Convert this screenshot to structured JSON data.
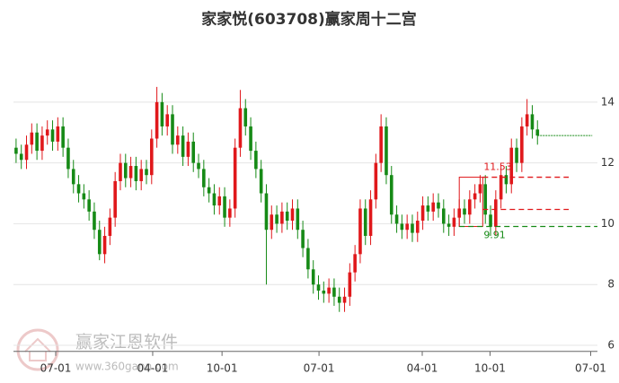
{
  "chart_data": {
    "type": "candlestick",
    "title": "家家悦(603708)赢家周十二宫",
    "open": [
      12.5,
      12.3,
      12.1,
      12.6,
      13.0,
      12.4,
      12.9,
      13.1,
      12.7,
      13.2,
      12.5,
      11.8,
      11.3,
      11.0,
      10.8,
      10.4,
      9.8,
      9.0,
      9.6,
      10.2,
      11.4,
      12.0,
      11.5,
      11.9,
      11.4,
      11.8,
      11.6,
      12.8,
      14.0,
      13.2,
      13.6,
      12.6,
      12.9,
      12.2,
      12.7,
      12.0,
      11.8,
      11.2,
      11.0,
      10.6,
      10.9,
      10.2,
      10.5,
      12.5,
      13.8,
      13.2,
      12.4,
      11.8,
      11.0,
      9.8,
      10.3,
      10.0,
      10.4,
      10.1,
      10.5,
      9.8,
      9.2,
      8.5,
      8.0,
      7.8,
      7.7,
      7.9,
      7.6,
      7.4,
      7.6,
      8.4,
      9.0,
      10.5,
      9.6,
      10.8,
      12.0,
      13.2,
      11.6,
      10.3,
      10.0,
      9.8,
      10.0,
      9.7,
      10.1,
      10.6,
      10.4,
      10.7,
      10.5,
      10.0,
      9.9,
      10.2,
      10.5,
      10.3,
      10.8,
      11.0,
      11.3,
      10.3,
      9.9,
      10.8,
      11.6,
      11.3,
      12.5,
      12.0,
      13.2,
      13.6,
      13.1
    ],
    "high": [
      12.8,
      12.6,
      12.9,
      13.3,
      13.3,
      13.2,
      13.4,
      13.4,
      13.5,
      13.5,
      12.8,
      12.1,
      11.6,
      11.3,
      11.1,
      10.7,
      10.1,
      9.9,
      10.5,
      11.7,
      12.3,
      12.3,
      12.2,
      12.2,
      12.1,
      12.1,
      13.1,
      14.5,
      14.3,
      13.9,
      13.9,
      13.2,
      13.2,
      13.0,
      13.0,
      12.3,
      12.1,
      11.5,
      11.3,
      11.2,
      11.2,
      10.8,
      12.8,
      14.4,
      14.1,
      13.5,
      12.7,
      12.1,
      11.3,
      10.6,
      10.6,
      10.7,
      10.7,
      10.8,
      10.8,
      10.1,
      9.5,
      8.8,
      8.3,
      8.1,
      8.2,
      8.2,
      7.9,
      7.9,
      8.7,
      9.3,
      10.8,
      10.8,
      11.1,
      12.3,
      13.6,
      13.5,
      11.9,
      10.6,
      10.3,
      10.3,
      10.3,
      10.4,
      10.9,
      10.9,
      11.0,
      11.0,
      10.8,
      10.3,
      10.5,
      10.8,
      10.8,
      11.1,
      11.3,
      11.6,
      11.6,
      10.6,
      11.1,
      11.9,
      11.9,
      12.8,
      12.8,
      13.5,
      14.1,
      13.9,
      13.4
    ],
    "low": [
      12.0,
      11.8,
      11.8,
      12.3,
      12.1,
      12.1,
      12.6,
      12.4,
      12.4,
      12.2,
      11.5,
      11.0,
      10.7,
      10.5,
      10.1,
      9.5,
      8.8,
      8.7,
      9.3,
      9.9,
      11.1,
      11.2,
      11.2,
      11.1,
      11.1,
      11.3,
      11.3,
      12.5,
      12.9,
      12.9,
      12.3,
      12.3,
      11.9,
      11.9,
      11.7,
      11.5,
      10.9,
      10.7,
      10.3,
      10.3,
      9.9,
      9.9,
      10.2,
      12.2,
      12.9,
      12.1,
      11.5,
      10.7,
      8.0,
      9.5,
      9.7,
      9.7,
      9.8,
      9.8,
      9.5,
      8.9,
      8.2,
      7.7,
      7.5,
      7.4,
      7.4,
      7.3,
      7.1,
      7.1,
      7.3,
      8.1,
      8.7,
      9.3,
      9.3,
      10.5,
      11.7,
      11.3,
      10.0,
      9.7,
      9.5,
      9.5,
      9.4,
      9.4,
      9.8,
      10.1,
      10.1,
      10.2,
      9.7,
      9.6,
      9.6,
      9.9,
      10.0,
      10.0,
      10.5,
      10.7,
      10.0,
      9.6,
      9.6,
      10.5,
      11.0,
      11.0,
      11.7,
      11.7,
      12.9,
      12.8,
      12.6
    ],
    "close": [
      12.3,
      12.1,
      12.6,
      13.0,
      12.4,
      12.9,
      13.1,
      12.7,
      13.2,
      12.5,
      11.8,
      11.3,
      11.0,
      10.8,
      10.4,
      9.8,
      9.0,
      9.6,
      10.2,
      11.4,
      12.0,
      11.5,
      11.9,
      11.4,
      11.8,
      11.6,
      12.8,
      14.0,
      13.2,
      13.6,
      12.6,
      12.9,
      12.2,
      12.7,
      12.0,
      11.8,
      11.2,
      11.0,
      10.6,
      10.9,
      10.2,
      10.5,
      12.5,
      13.8,
      13.2,
      12.4,
      11.8,
      11.0,
      9.8,
      10.3,
      10.0,
      10.4,
      10.1,
      10.5,
      9.8,
      9.2,
      8.5,
      8.0,
      7.8,
      7.7,
      7.9,
      7.6,
      7.4,
      7.6,
      8.4,
      9.0,
      10.5,
      9.6,
      10.8,
      12.0,
      13.2,
      11.6,
      10.3,
      10.0,
      9.8,
      10.0,
      9.7,
      10.1,
      10.6,
      10.4,
      10.7,
      10.5,
      10.0,
      9.9,
      10.2,
      10.5,
      10.3,
      10.8,
      11.0,
      11.3,
      10.3,
      9.9,
      10.8,
      11.6,
      11.3,
      12.5,
      12.0,
      13.2,
      13.6,
      13.1,
      12.9
    ],
    "up_color": "#e0181b",
    "down_color": "#168a16",
    "xlim": [
      -0.5,
      111.5
    ],
    "xticks": [
      {
        "value": 7.6,
        "label": "07-01"
      },
      {
        "value": 26.2,
        "label": "04-01"
      },
      {
        "value": 39.5,
        "label": "10-01"
      },
      {
        "value": 58.1,
        "label": "07-01"
      },
      {
        "value": 77.9,
        "label": "04-01"
      },
      {
        "value": 90.9,
        "label": "10-01"
      },
      {
        "value": 110.2,
        "label": "07-01"
      }
    ],
    "ylim": [
      5.8,
      15.6
    ],
    "yticks": [
      6,
      8,
      10,
      12,
      14
    ],
    "grid": true,
    "box_x": [
      85,
      89.5
    ],
    "marked_levels": [
      {
        "value": 11.53,
        "color": "#e0181b",
        "span": [
          89.5,
          106
        ]
      },
      {
        "value": 9.91,
        "color": "#168a16",
        "span": [
          85,
          111.5
        ]
      }
    ],
    "levels": [
      {
        "value": 10.47,
        "color": "#e0181b",
        "span": [
          89.5,
          106
        ]
      }
    ],
    "watermark": {
      "name": "赢家江恩软件",
      "site": "www.360gann.com"
    }
  }
}
